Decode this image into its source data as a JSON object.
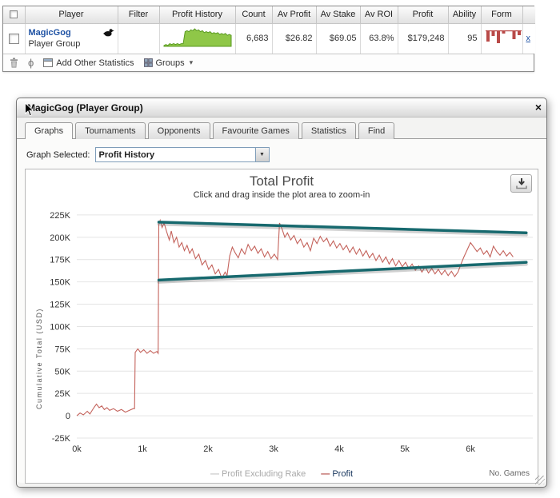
{
  "colors": {
    "link_blue": "#2053a4",
    "sparkline_fill": "#8fc748",
    "sparkline_stroke": "#5a9a21",
    "form_bar": "#b94a48",
    "profit_line": "#c4635c",
    "trend_line": "#17696e"
  },
  "table": {
    "headers": [
      "Player",
      "Filter",
      "Profit History",
      "Count",
      "Av Profit",
      "Av Stake",
      "Av ROI",
      "Profit",
      "Ability",
      "Form"
    ],
    "row": {
      "player_name": "MagicGog",
      "player_type": "Player Group",
      "count": "6,683",
      "av_profit": "$26.82",
      "av_stake": "$69.05",
      "av_roi": "63.8%",
      "profit": "$179,248",
      "ability": "95",
      "remove_label": "x",
      "sparkline": [
        1,
        2,
        1,
        3,
        2,
        3,
        2,
        3,
        2,
        3,
        3,
        16,
        17,
        16,
        18,
        17,
        19,
        17,
        18,
        16,
        17,
        15,
        16,
        15,
        16,
        14,
        15,
        14,
        15,
        13,
        14,
        13,
        14,
        12,
        13,
        12
      ],
      "form_bars": [
        13,
        6,
        15,
        3,
        0,
        10,
        5
      ]
    },
    "toolbar": {
      "add_other_statistics": "Add Other Statistics",
      "groups": "Groups"
    }
  },
  "dialog": {
    "title": "MagicGog (Player Group)",
    "close_label": "×",
    "tabs": [
      "Graphs",
      "Tournaments",
      "Opponents",
      "Favourite Games",
      "Statistics",
      "Find"
    ],
    "active_tab": "Graphs",
    "graph_selected_label": "Graph Selected:",
    "graph_selector_value": "Profit History"
  },
  "chart_data": {
    "type": "line",
    "title": "Total Profit",
    "subtitle": "Click and drag inside the plot area to zoom-in",
    "ylabel": "Cumulative Total (USD)",
    "xlabel": "No. Games",
    "x_ticks": [
      "0k",
      "1k",
      "2k",
      "3k",
      "4k",
      "5k",
      "6k"
    ],
    "y_ticks": [
      "225K",
      "200K",
      "175K",
      "150K",
      "125K",
      "100K",
      "75K",
      "50K",
      "25K",
      "0",
      "-25K"
    ],
    "xlim": [
      0,
      6.95
    ],
    "ylim": [
      -25,
      233
    ],
    "grid": "horizontal",
    "legend_position": "bottom",
    "legend": [
      {
        "label": "Profit Excluding Rake",
        "color": "#c5c5c5",
        "text_color": "#a8a8a8"
      },
      {
        "label": "Profit",
        "color": "#b04a45",
        "text_color": "#17365d"
      }
    ],
    "series": [
      {
        "name": "Profit",
        "color": "#c4635c",
        "points": [
          [
            0,
            0
          ],
          [
            0.05,
            3
          ],
          [
            0.1,
            1
          ],
          [
            0.16,
            5
          ],
          [
            0.2,
            2
          ],
          [
            0.26,
            9
          ],
          [
            0.3,
            13
          ],
          [
            0.34,
            9
          ],
          [
            0.38,
            11
          ],
          [
            0.42,
            7
          ],
          [
            0.46,
            9
          ],
          [
            0.5,
            6
          ],
          [
            0.56,
            8
          ],
          [
            0.62,
            5
          ],
          [
            0.68,
            7
          ],
          [
            0.74,
            4
          ],
          [
            0.8,
            6
          ],
          [
            0.86,
            8
          ],
          [
            0.88,
            8
          ],
          [
            0.89,
            71
          ],
          [
            0.93,
            75
          ],
          [
            0.97,
            71
          ],
          [
            1.02,
            74
          ],
          [
            1.07,
            70
          ],
          [
            1.12,
            73
          ],
          [
            1.17,
            70
          ],
          [
            1.22,
            72
          ],
          [
            1.24,
            70
          ],
          [
            1.25,
            214
          ],
          [
            1.27,
            219
          ],
          [
            1.3,
            211
          ],
          [
            1.33,
            216
          ],
          [
            1.37,
            206
          ],
          [
            1.41,
            197
          ],
          [
            1.44,
            207
          ],
          [
            1.48,
            194
          ],
          [
            1.52,
            200
          ],
          [
            1.56,
            189
          ],
          [
            1.6,
            194
          ],
          [
            1.64,
            185
          ],
          [
            1.68,
            191
          ],
          [
            1.72,
            182
          ],
          [
            1.76,
            187
          ],
          [
            1.81,
            176
          ],
          [
            1.86,
            181
          ],
          [
            1.91,
            169
          ],
          [
            1.96,
            174
          ],
          [
            2.01,
            164
          ],
          [
            2.06,
            169
          ],
          [
            2.11,
            159
          ],
          [
            2.16,
            164
          ],
          [
            2.21,
            154
          ],
          [
            2.26,
            161
          ],
          [
            2.29,
            157
          ],
          [
            2.33,
            179
          ],
          [
            2.37,
            189
          ],
          [
            2.41,
            183
          ],
          [
            2.46,
            177
          ],
          [
            2.51,
            187
          ],
          [
            2.56,
            181
          ],
          [
            2.61,
            192
          ],
          [
            2.66,
            185
          ],
          [
            2.71,
            190
          ],
          [
            2.76,
            182
          ],
          [
            2.81,
            187
          ],
          [
            2.86,
            178
          ],
          [
            2.91,
            184
          ],
          [
            2.96,
            176
          ],
          [
            3.01,
            181
          ],
          [
            3.06,
            175
          ],
          [
            3.09,
            216
          ],
          [
            3.13,
            209
          ],
          [
            3.17,
            200
          ],
          [
            3.21,
            205
          ],
          [
            3.26,
            197
          ],
          [
            3.31,
            202
          ],
          [
            3.36,
            193
          ],
          [
            3.41,
            198
          ],
          [
            3.46,
            189
          ],
          [
            3.51,
            194
          ],
          [
            3.56,
            185
          ],
          [
            3.61,
            199
          ],
          [
            3.66,
            193
          ],
          [
            3.71,
            201
          ],
          [
            3.76,
            195
          ],
          [
            3.81,
            199
          ],
          [
            3.86,
            190
          ],
          [
            3.91,
            196
          ],
          [
            3.96,
            188
          ],
          [
            4.01,
            193
          ],
          [
            4.06,
            186
          ],
          [
            4.11,
            191
          ],
          [
            4.16,
            183
          ],
          [
            4.21,
            189
          ],
          [
            4.26,
            181
          ],
          [
            4.31,
            187
          ],
          [
            4.36,
            179
          ],
          [
            4.41,
            185
          ],
          [
            4.46,
            177
          ],
          [
            4.51,
            182
          ],
          [
            4.56,
            174
          ],
          [
            4.61,
            180
          ],
          [
            4.66,
            172
          ],
          [
            4.71,
            178
          ],
          [
            4.76,
            170
          ],
          [
            4.81,
            176
          ],
          [
            4.86,
            168
          ],
          [
            4.91,
            174
          ],
          [
            4.96,
            167
          ],
          [
            5.01,
            172
          ],
          [
            5.06,
            165
          ],
          [
            5.11,
            170
          ],
          [
            5.16,
            163
          ],
          [
            5.21,
            168
          ],
          [
            5.26,
            161
          ],
          [
            5.31,
            167
          ],
          [
            5.36,
            160
          ],
          [
            5.41,
            165
          ],
          [
            5.46,
            159
          ],
          [
            5.51,
            164
          ],
          [
            5.56,
            158
          ],
          [
            5.61,
            163
          ],
          [
            5.66,
            157
          ],
          [
            5.71,
            162
          ],
          [
            5.76,
            156
          ],
          [
            5.81,
            161
          ],
          [
            5.85,
            169
          ],
          [
            5.9,
            178
          ],
          [
            5.95,
            186
          ],
          [
            6.0,
            194
          ],
          [
            6.05,
            189
          ],
          [
            6.1,
            184
          ],
          [
            6.15,
            188
          ],
          [
            6.2,
            181
          ],
          [
            6.25,
            185
          ],
          [
            6.3,
            178
          ],
          [
            6.35,
            190
          ],
          [
            6.4,
            184
          ],
          [
            6.45,
            180
          ],
          [
            6.5,
            185
          ],
          [
            6.55,
            179
          ],
          [
            6.6,
            183
          ],
          [
            6.65,
            178
          ]
        ]
      }
    ],
    "trend_lines": [
      {
        "from": [
          1.25,
          217
        ],
        "to": [
          6.85,
          205
        ],
        "color": "#17696e"
      },
      {
        "from": [
          1.25,
          152
        ],
        "to": [
          6.85,
          172
        ],
        "color": "#17696e"
      }
    ]
  }
}
